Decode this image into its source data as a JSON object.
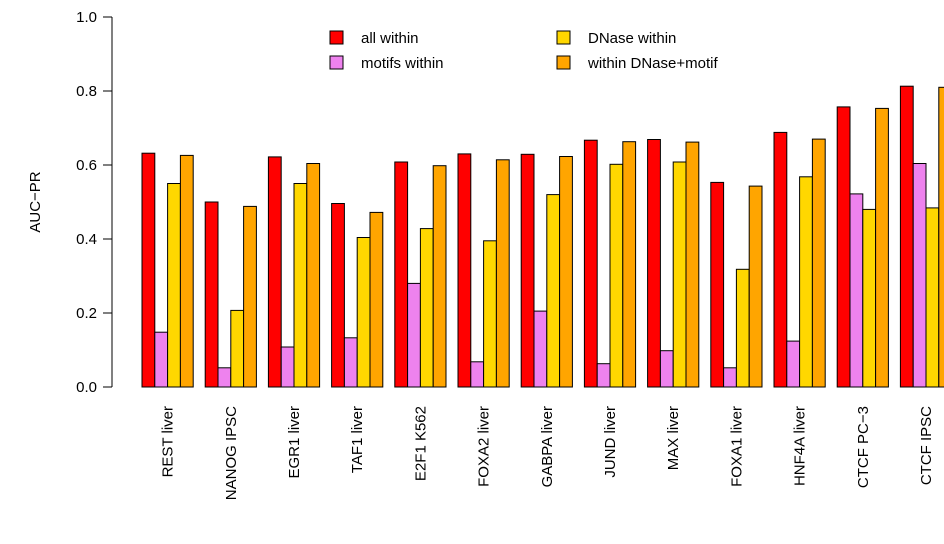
{
  "chart_data": {
    "type": "bar",
    "title": "",
    "xlabel": "",
    "ylabel": "AUC−PR",
    "ylim": [
      0,
      1
    ],
    "yticks": [
      "0.0",
      "0.2",
      "0.4",
      "0.6",
      "0.8",
      "1.0"
    ],
    "legend_position": "top",
    "categories": [
      "REST liver",
      "NANOG IPSC",
      "EGR1 liver",
      "TAF1 liver",
      "E2F1 K562",
      "FOXA2 liver",
      "GABPA liver",
      "JUND liver",
      "MAX liver",
      "FOXA1 liver",
      "HNF4A liver",
      "CTCF PC−3",
      "CTCF IPSC"
    ],
    "series": [
      {
        "name": "all within",
        "color": "#ff0000",
        "values": [
          0.632,
          0.5,
          0.622,
          0.496,
          0.608,
          0.63,
          0.629,
          0.667,
          0.669,
          0.553,
          0.688,
          0.757,
          0.813
        ]
      },
      {
        "name": "motifs within",
        "color": "#ee82ee",
        "values": [
          0.148,
          0.052,
          0.108,
          0.133,
          0.28,
          0.068,
          0.205,
          0.063,
          0.098,
          0.052,
          0.124,
          0.522,
          0.604
        ]
      },
      {
        "name": "DNase within",
        "color": "#ffd700",
        "values": [
          0.55,
          0.207,
          0.55,
          0.404,
          0.428,
          0.395,
          0.52,
          0.602,
          0.608,
          0.318,
          0.568,
          0.48,
          0.484
        ]
      },
      {
        "name": "within DNase+motif",
        "color": "#ffa500",
        "values": [
          0.626,
          0.488,
          0.604,
          0.472,
          0.598,
          0.614,
          0.623,
          0.663,
          0.662,
          0.543,
          0.67,
          0.753,
          0.81
        ]
      }
    ]
  }
}
